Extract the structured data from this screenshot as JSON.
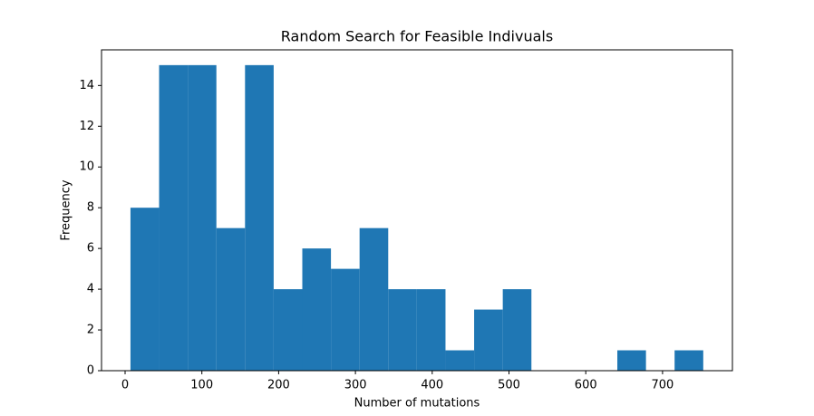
{
  "chart_data": {
    "type": "histogram",
    "title": "Random Search for Feasible Indivuals",
    "xlabel": "Number of mutations",
    "ylabel": "Frequency",
    "bins": [
      7,
      44.3,
      81.6,
      118.9,
      156.2,
      193.5,
      230.8,
      268.1,
      305.4,
      342.7,
      380,
      417.3,
      454.6,
      491.9,
      529.2,
      566.5,
      603.8,
      641.1,
      678.4,
      715.7,
      753
    ],
    "counts": [
      8,
      15,
      15,
      7,
      15,
      4,
      6,
      5,
      7,
      4,
      4,
      1,
      3,
      4,
      0,
      0,
      0,
      1,
      0,
      1
    ],
    "color": "#1f77b4",
    "xlim": [
      -30.7,
      791
    ],
    "xticks": [
      0,
      100,
      200,
      300,
      400,
      500,
      600,
      700
    ],
    "ylim": [
      0,
      15.75
    ],
    "yticks": [
      0,
      2,
      4,
      6,
      8,
      10,
      12,
      14
    ]
  }
}
